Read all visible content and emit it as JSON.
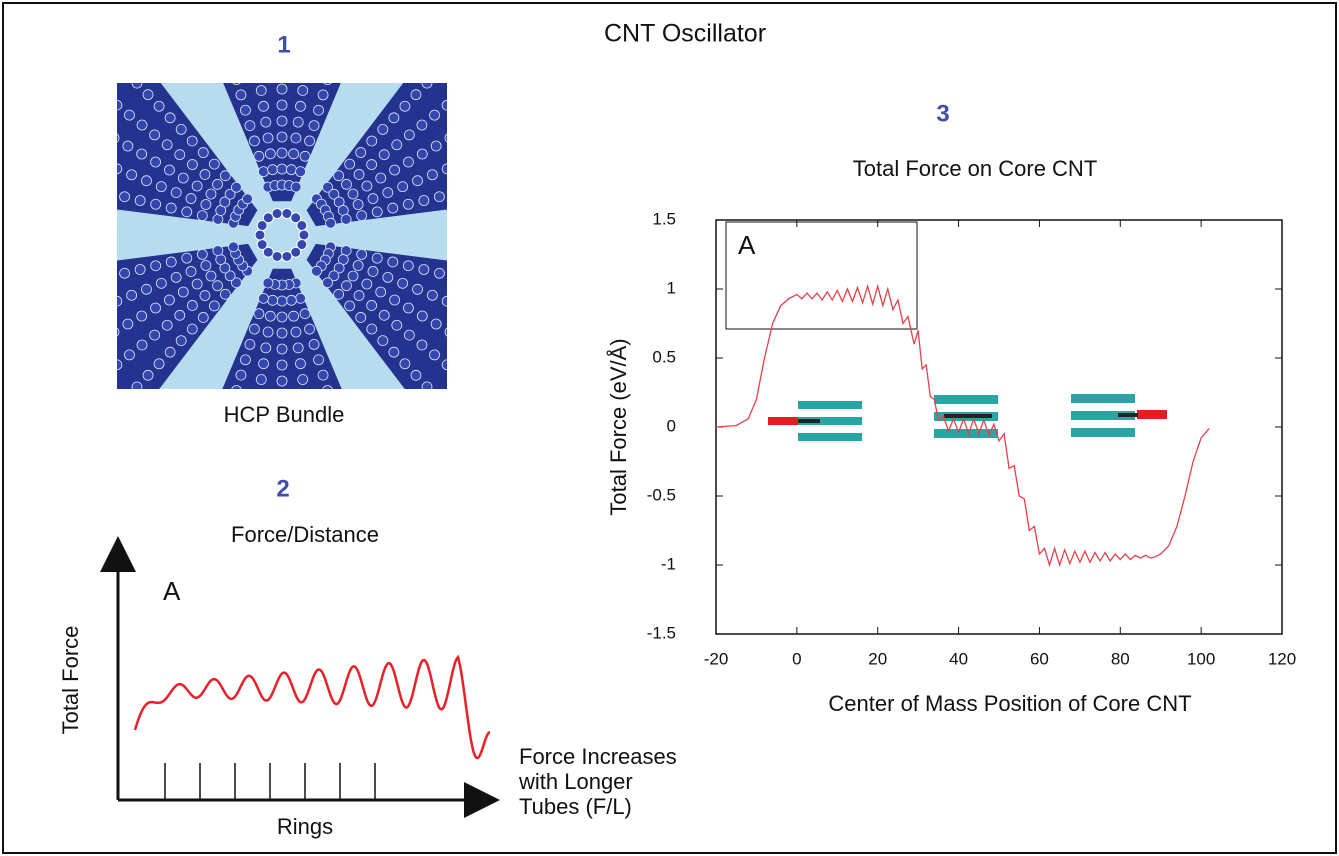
{
  "title": "CNT Oscillator",
  "panel1": {
    "number": "1",
    "caption": "HCP Bundle"
  },
  "panel2": {
    "number": "2",
    "title": "Force/Distance",
    "annotation": "A",
    "ylabel": "Total Force",
    "xlabel": "Rings",
    "note": [
      "Force Increases",
      "with Longer",
      "Tubes (F/L)"
    ]
  },
  "chart_data": {
    "type": "line",
    "panel_number": "3",
    "title": "Total Force on Core CNT",
    "annotation": "A",
    "xlabel": "Center of Mass Position of Core CNT",
    "ylabel": "Total Force (eV/Å)",
    "x": [
      -20,
      -15,
      -12,
      -10,
      -8,
      -6,
      -4,
      -2,
      0,
      1.25,
      2.5,
      3.75,
      5,
      6.25,
      7.5,
      8.75,
      10,
      11.25,
      12.5,
      13.75,
      15,
      16.25,
      17.5,
      18.75,
      20,
      21.25,
      22.5,
      23.75,
      25,
      26.25,
      27.5,
      29,
      30,
      31,
      32,
      33,
      34,
      35,
      36.25,
      37.5,
      38.75,
      40,
      41.25,
      42.5,
      43.75,
      45,
      46.25,
      47.5,
      48.75,
      50,
      51.25,
      52.5,
      53.75,
      55,
      56.25,
      57.5,
      58.75,
      60,
      61.25,
      62.5,
      63.75,
      65,
      66.25,
      67.5,
      68.75,
      70,
      71.25,
      72.5,
      73.75,
      75,
      76.25,
      77.5,
      78.75,
      80,
      81.25,
      82.5,
      83.75,
      85,
      86.25,
      87.5,
      88.75,
      90,
      92,
      94,
      96,
      98,
      100,
      102
    ],
    "series": [
      {
        "color": "#e8404a",
        "values": [
          0,
          0.01,
          0.06,
          0.2,
          0.5,
          0.75,
          0.88,
          0.93,
          0.96,
          0.93,
          0.97,
          0.93,
          0.97,
          0.92,
          0.98,
          0.92,
          0.99,
          0.91,
          1.0,
          0.91,
          1.01,
          0.9,
          1.02,
          0.89,
          1.02,
          0.88,
          1.0,
          0.85,
          0.92,
          0.75,
          0.8,
          0.6,
          0.7,
          0.42,
          0.45,
          0.22,
          0.2,
          0.05,
          0.08,
          -0.03,
          0.06,
          -0.04,
          0.06,
          -0.05,
          0.06,
          -0.05,
          0.05,
          -0.06,
          0.02,
          -0.1,
          -0.05,
          -0.3,
          -0.28,
          -0.5,
          -0.52,
          -0.75,
          -0.72,
          -0.92,
          -0.88,
          -1.0,
          -0.88,
          -1.0,
          -0.89,
          -0.99,
          -0.9,
          -0.98,
          -0.9,
          -0.98,
          -0.91,
          -0.97,
          -0.91,
          -0.97,
          -0.92,
          -0.96,
          -0.92,
          -0.96,
          -0.93,
          -0.95,
          -0.93,
          -0.95,
          -0.94,
          -0.92,
          -0.86,
          -0.72,
          -0.5,
          -0.25,
          -0.08,
          -0.01
        ]
      }
    ],
    "xlim": [
      -20,
      120
    ],
    "xticks": [
      -20,
      0,
      20,
      40,
      60,
      80,
      100,
      120
    ],
    "ylim": [
      -1.5,
      1.5
    ],
    "yticks": [
      -1.5,
      -1,
      -0.5,
      0,
      0.5,
      1,
      1.5
    ]
  }
}
